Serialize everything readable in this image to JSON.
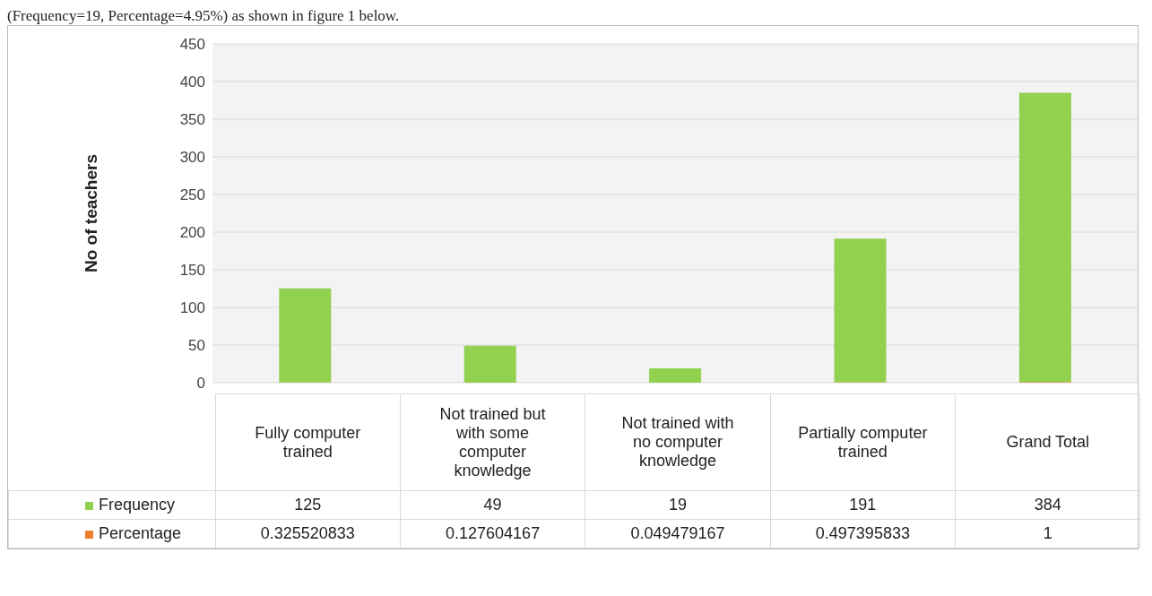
{
  "chart_data": {
    "type": "bar",
    "stacked": true,
    "ylabel": "No of teachers",
    "annotations": [
      "(Frequency=19, Percentage=4.95%) as shown in figure 1 below."
    ],
    "categories": [
      "Fully computer trained",
      "Not trained but with some computer knowledge",
      "Not trained with no computer knowledge",
      "Partially computer trained",
      "Grand Total"
    ],
    "series": [
      {
        "name": "Percentage",
        "color": "#ed7d31",
        "values": [
          0.325520833,
          0.127604167,
          0.049479167,
          0.497395833,
          1
        ]
      },
      {
        "name": "Frequency",
        "color": "#92d050",
        "values": [
          125,
          49,
          19,
          191,
          384
        ]
      }
    ],
    "ylim": [
      0,
      450
    ],
    "yticks": [
      0,
      50,
      100,
      150,
      200,
      250,
      300,
      350,
      400,
      450
    ],
    "grid": "y",
    "legend": "bottom",
    "data_labels": true
  }
}
